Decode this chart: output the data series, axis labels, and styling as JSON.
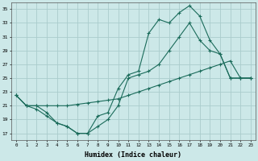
{
  "xlabel": "Humidex (Indice chaleur)",
  "background_color": "#cce8e8",
  "grid_color": "#aacccc",
  "line_color": "#1a6b5a",
  "xlim": [
    -0.5,
    23.5
  ],
  "ylim": [
    16,
    36
  ],
  "yticks": [
    17,
    19,
    21,
    23,
    25,
    27,
    29,
    31,
    33,
    35
  ],
  "xticks": [
    0,
    1,
    2,
    3,
    4,
    5,
    6,
    7,
    8,
    9,
    10,
    11,
    12,
    13,
    14,
    15,
    16,
    17,
    18,
    19,
    20,
    21,
    22,
    23
  ],
  "line1_x": [
    0,
    1,
    2,
    3,
    4,
    5,
    6,
    7,
    8,
    9,
    10,
    11,
    12,
    13,
    14,
    15,
    16,
    17,
    18,
    19,
    20,
    21,
    22,
    23
  ],
  "line1_y": [
    22.5,
    21,
    21,
    20,
    18.5,
    18,
    17,
    17,
    19.5,
    20,
    23.5,
    25.5,
    26,
    31.5,
    33.5,
    33,
    34.5,
    35.5,
    34,
    30.5,
    28.5,
    25,
    25,
    25
  ],
  "line2_x": [
    0,
    1,
    2,
    3,
    4,
    5,
    6,
    7,
    8,
    9,
    10,
    11,
    12,
    13,
    14,
    15,
    16,
    17,
    18,
    19,
    20,
    21,
    22,
    23
  ],
  "line2_y": [
    22.5,
    21,
    20.5,
    19.5,
    18.5,
    18,
    17,
    17,
    18,
    19,
    21,
    25,
    25.5,
    26,
    27,
    29,
    31,
    33,
    30.5,
    29,
    28.5,
    25,
    25,
    25
  ],
  "line3_x": [
    0,
    1,
    2,
    3,
    4,
    5,
    6,
    7,
    8,
    9,
    10,
    11,
    12,
    13,
    14,
    15,
    16,
    17,
    18,
    19,
    20,
    21,
    22,
    23
  ],
  "line3_y": [
    22.5,
    21,
    21,
    21,
    21,
    21,
    21.2,
    21.4,
    21.6,
    21.8,
    22,
    22.5,
    23,
    23.5,
    24,
    24.5,
    25,
    25.5,
    26,
    26.5,
    27,
    27.5,
    25,
    25
  ]
}
